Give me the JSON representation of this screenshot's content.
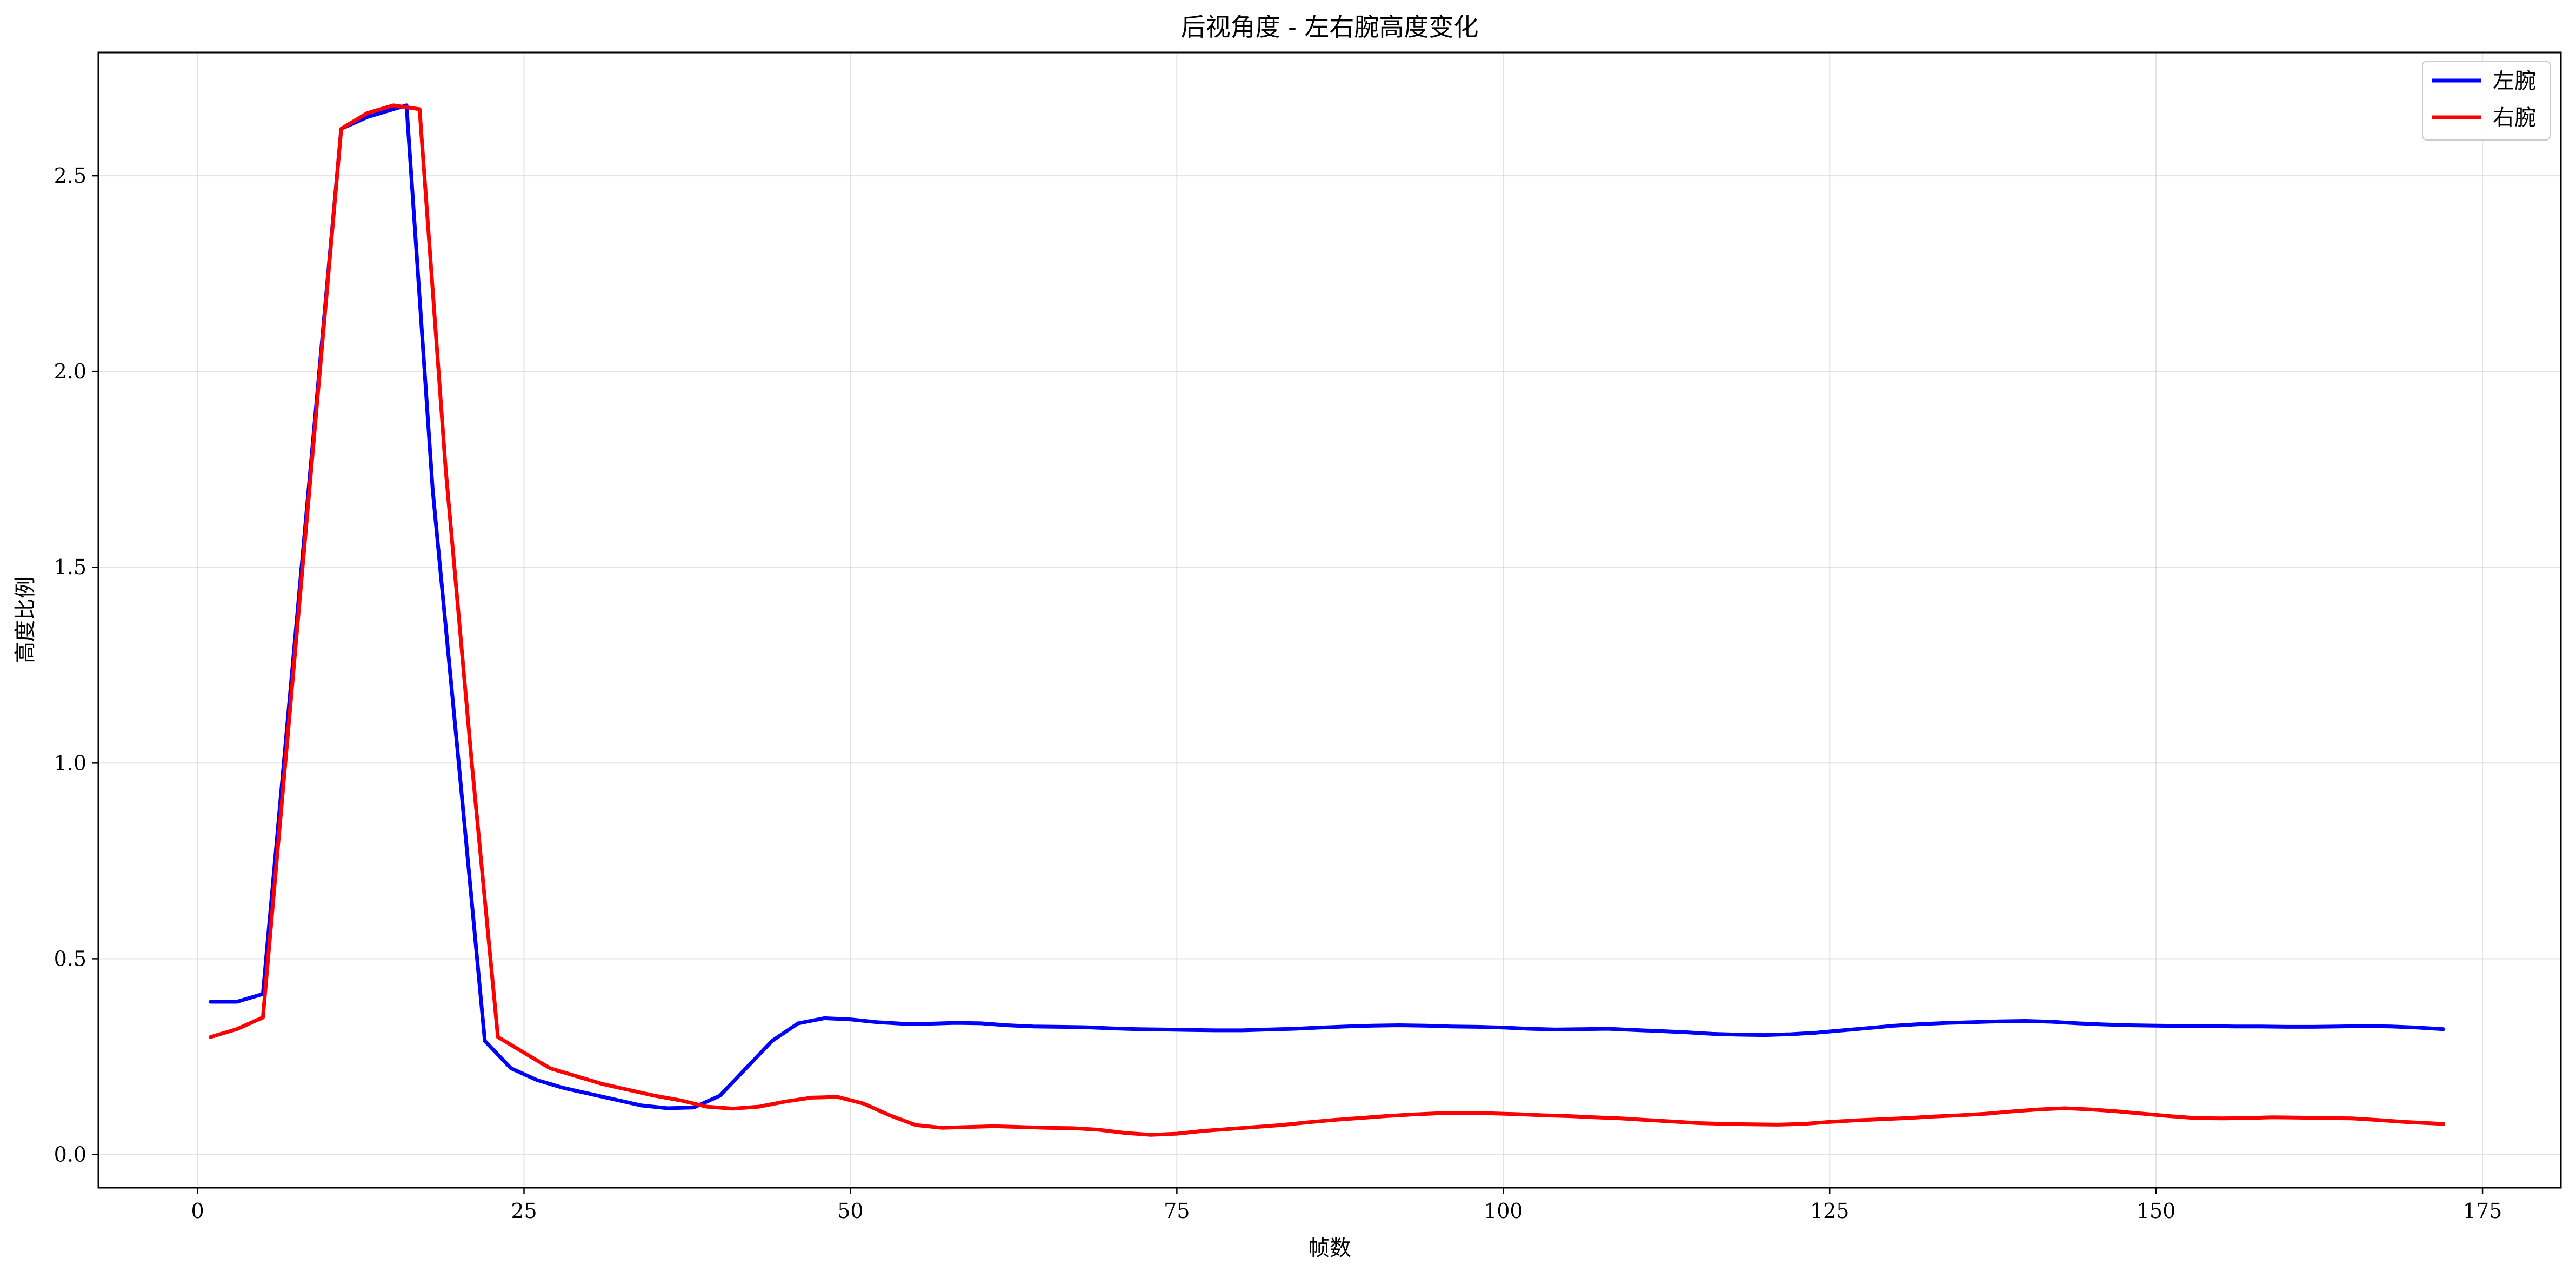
{
  "chart_data": {
    "type": "line",
    "title": "后视角度 - 左右腕高度变化",
    "xlabel": "帧数",
    "ylabel": "高度比例",
    "xlim": [
      -7.6,
      181.0
    ],
    "ylim": [
      -0.085,
      2.815
    ],
    "xticks": [
      0,
      25,
      50,
      75,
      100,
      125,
      150,
      175
    ],
    "yticks": [
      0.0,
      0.5,
      1.0,
      1.5,
      2.0,
      2.5
    ],
    "xtick_labels": [
      "0",
      "25",
      "50",
      "75",
      "100",
      "125",
      "150",
      "175"
    ],
    "ytick_labels": [
      "0.0",
      "0.5",
      "1.0",
      "1.5",
      "2.0",
      "2.5"
    ],
    "grid": true,
    "legend_position": "top-right",
    "series": [
      {
        "name": "左腕",
        "color": "#0000ff",
        "x": [
          1,
          3,
          5,
          11,
          13,
          15,
          16,
          18,
          20,
          22,
          24,
          26,
          28,
          30,
          32,
          34,
          36,
          38,
          40,
          42,
          44,
          46,
          48,
          50,
          52,
          54,
          56,
          58,
          60,
          62,
          64,
          66,
          68,
          70,
          72,
          74,
          76,
          78,
          80,
          82,
          84,
          86,
          88,
          90,
          92,
          94,
          96,
          98,
          100,
          102,
          104,
          106,
          108,
          110,
          112,
          114,
          116,
          118,
          120,
          122,
          124,
          126,
          128,
          130,
          132,
          134,
          136,
          138,
          140,
          142,
          144,
          146,
          148,
          150,
          152,
          154,
          156,
          158,
          160,
          162,
          164,
          166,
          168,
          170,
          172
        ],
        "y": [
          0.39,
          0.39,
          0.41,
          2.62,
          2.65,
          2.67,
          2.68,
          1.7,
          1.0,
          0.29,
          0.22,
          0.19,
          0.17,
          0.155,
          0.14,
          0.125,
          0.118,
          0.12,
          0.15,
          0.22,
          0.29,
          0.335,
          0.348,
          0.345,
          0.338,
          0.334,
          0.334,
          0.336,
          0.335,
          0.33,
          0.327,
          0.326,
          0.325,
          0.322,
          0.32,
          0.319,
          0.318,
          0.317,
          0.317,
          0.319,
          0.321,
          0.324,
          0.327,
          0.329,
          0.33,
          0.329,
          0.327,
          0.326,
          0.324,
          0.321,
          0.319,
          0.32,
          0.321,
          0.318,
          0.315,
          0.312,
          0.308,
          0.306,
          0.305,
          0.307,
          0.311,
          0.317,
          0.323,
          0.329,
          0.333,
          0.336,
          0.338,
          0.34,
          0.341,
          0.339,
          0.335,
          0.332,
          0.33,
          0.329,
          0.328,
          0.328,
          0.327,
          0.327,
          0.326,
          0.326,
          0.327,
          0.328,
          0.327,
          0.324,
          0.32
        ]
      },
      {
        "name": "右腕",
        "color": "#ff0000",
        "x": [
          1,
          3,
          5,
          11,
          13,
          15,
          17,
          19,
          21,
          23,
          25,
          27,
          29,
          31,
          33,
          35,
          37,
          39,
          41,
          43,
          45,
          47,
          49,
          51,
          53,
          55,
          57,
          59,
          61,
          63,
          65,
          67,
          69,
          71,
          73,
          75,
          77,
          79,
          81,
          83,
          85,
          87,
          89,
          91,
          93,
          95,
          97,
          99,
          101,
          103,
          105,
          107,
          109,
          111,
          113,
          115,
          117,
          119,
          121,
          123,
          125,
          127,
          129,
          131,
          133,
          135,
          137,
          139,
          141,
          143,
          145,
          147,
          149,
          151,
          153,
          155,
          157,
          159,
          161,
          163,
          165,
          167,
          169,
          172
        ],
        "y": [
          0.3,
          0.32,
          0.35,
          2.62,
          2.66,
          2.68,
          2.67,
          1.75,
          1.0,
          0.3,
          0.26,
          0.22,
          0.2,
          0.18,
          0.165,
          0.15,
          0.138,
          0.122,
          0.117,
          0.122,
          0.135,
          0.145,
          0.147,
          0.13,
          0.1,
          0.075,
          0.068,
          0.07,
          0.072,
          0.07,
          0.068,
          0.067,
          0.063,
          0.055,
          0.05,
          0.053,
          0.06,
          0.065,
          0.07,
          0.075,
          0.082,
          0.088,
          0.093,
          0.098,
          0.102,
          0.105,
          0.106,
          0.105,
          0.103,
          0.1,
          0.098,
          0.095,
          0.092,
          0.088,
          0.084,
          0.08,
          0.078,
          0.077,
          0.076,
          0.078,
          0.083,
          0.087,
          0.09,
          0.093,
          0.097,
          0.1,
          0.104,
          0.11,
          0.115,
          0.118,
          0.115,
          0.11,
          0.104,
          0.098,
          0.093,
          0.092,
          0.093,
          0.095,
          0.094,
          0.093,
          0.092,
          0.088,
          0.083,
          0.078
        ]
      }
    ]
  }
}
